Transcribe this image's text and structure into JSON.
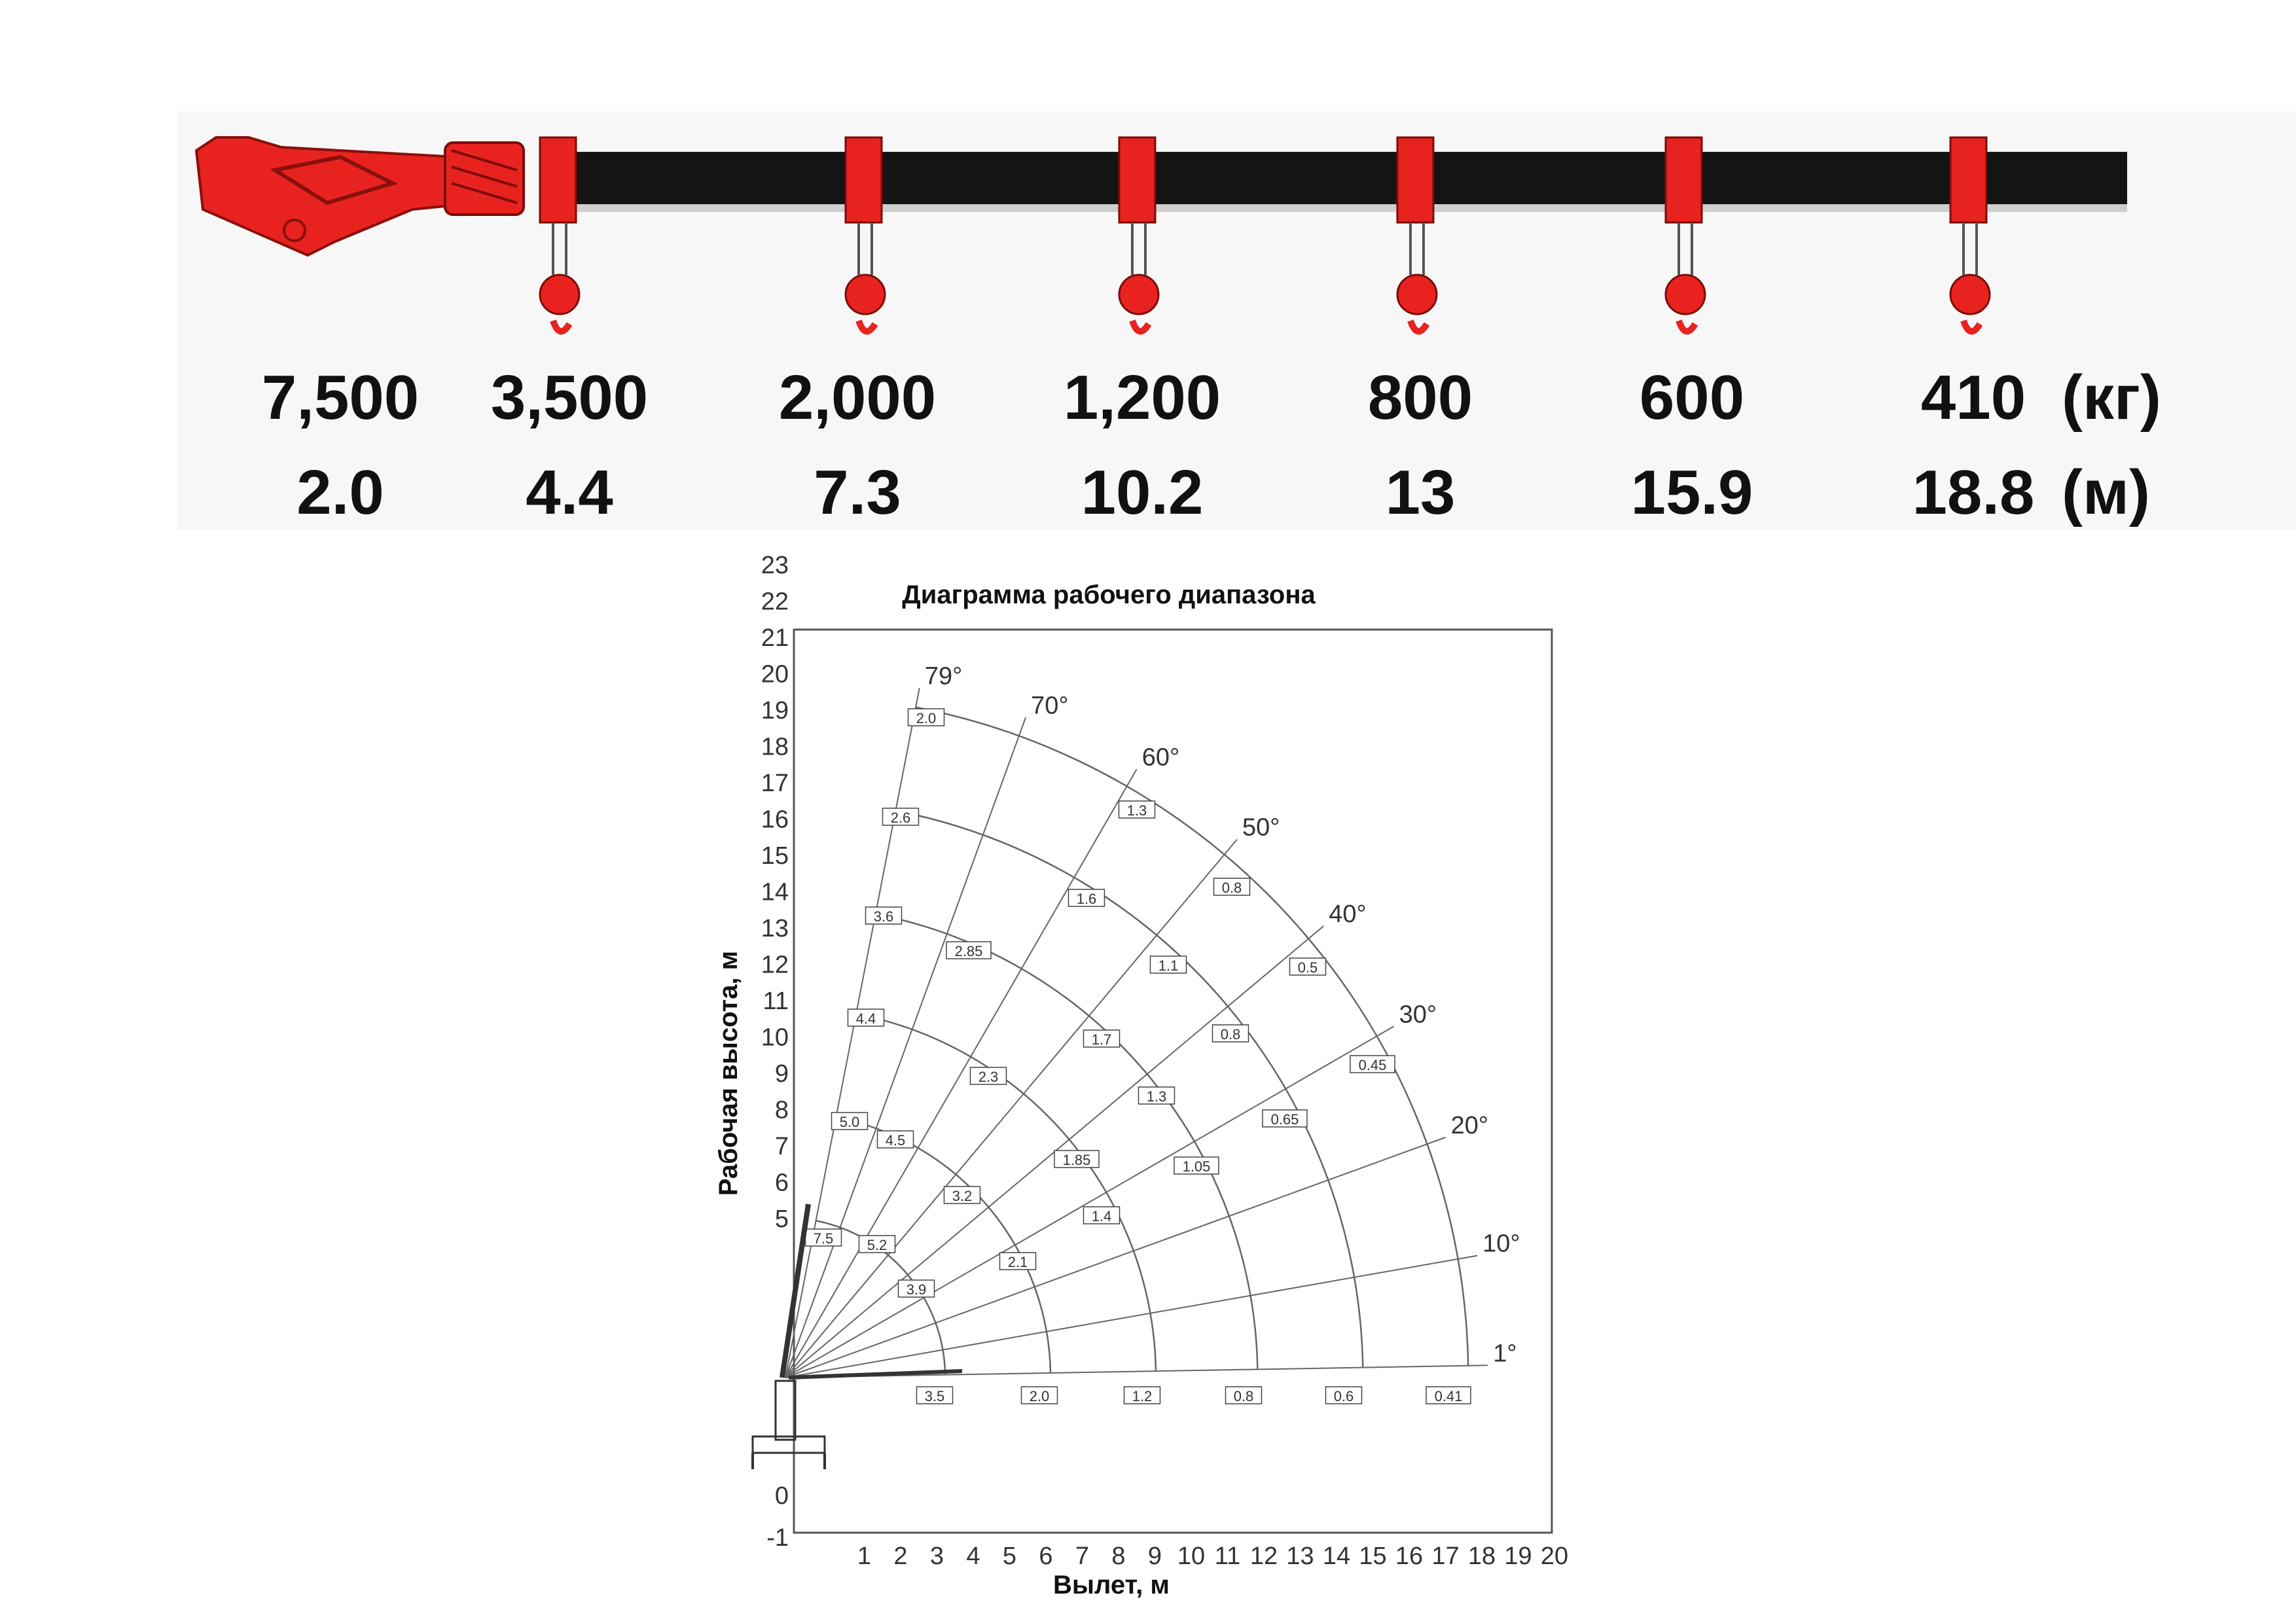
{
  "boom": {
    "color": "#e8231f",
    "sections": [
      {
        "load": "7,500",
        "reach": "2.0"
      },
      {
        "load": "3,500",
        "reach": "4.4"
      },
      {
        "load": "2,000",
        "reach": "7.3"
      },
      {
        "load": "1,200",
        "reach": "10.2"
      },
      {
        "load": "800",
        "reach": "13"
      },
      {
        "load": "600",
        "reach": "15.9"
      },
      {
        "load": "410",
        "reach": "18.8"
      }
    ],
    "load_unit": "(кг)",
    "reach_unit": "(м)"
  },
  "chart": {
    "title": "Диаграмма рабочего диапазона",
    "xlabel": "Вылет, м",
    "ylabel": "Рабочая высота, м",
    "xticks": [
      "1",
      "2",
      "3",
      "4",
      "5",
      "6",
      "7",
      "8",
      "9",
      "10",
      "11",
      "12",
      "13",
      "14",
      "15",
      "16",
      "17",
      "18",
      "19",
      "20"
    ],
    "yticks": [
      "-1",
      "0",
      "5",
      "6",
      "7",
      "8",
      "9",
      "10",
      "11",
      "12",
      "13",
      "14",
      "15",
      "16",
      "17",
      "18",
      "19",
      "20",
      "21",
      "22",
      "23"
    ],
    "angles": [
      "1°",
      "10°",
      "20°",
      "30°",
      "40°",
      "50°",
      "60°",
      "70°",
      "79°"
    ],
    "arcs_radius_m": [
      4.4,
      7.3,
      10.2,
      13,
      15.9,
      18.8
    ],
    "tip_labels": [
      "2.0",
      "2.6",
      "3.6",
      "4.4",
      "5.0",
      "7.5"
    ],
    "arc_labels": [
      "3.5",
      "2.0",
      "1.2",
      "0.8",
      "0.6",
      "0.41",
      "5.2",
      "3.9",
      "4.5",
      "3.2",
      "2.1",
      "2.85",
      "2.3",
      "1.85",
      "1.4",
      "1.3",
      "1.6",
      "1.7",
      "1.3",
      "1.05",
      "1.1",
      "0.8",
      "0.5",
      "0.8",
      "0.65",
      "0.45"
    ]
  },
  "chart_data": {
    "type": "table",
    "title": "Диаграмма рабочего диапазона",
    "xlabel": "Вылет, м",
    "ylabel": "Рабочая высота, м",
    "xlim": [
      0,
      20
    ],
    "ylim": [
      -1,
      23
    ],
    "load_chart": {
      "reach_m": [
        2.0,
        4.4,
        7.3,
        10.2,
        13,
        15.9,
        18.8
      ],
      "load_kg": [
        7500,
        3500,
        2000,
        1200,
        800,
        600,
        410
      ]
    }
  }
}
